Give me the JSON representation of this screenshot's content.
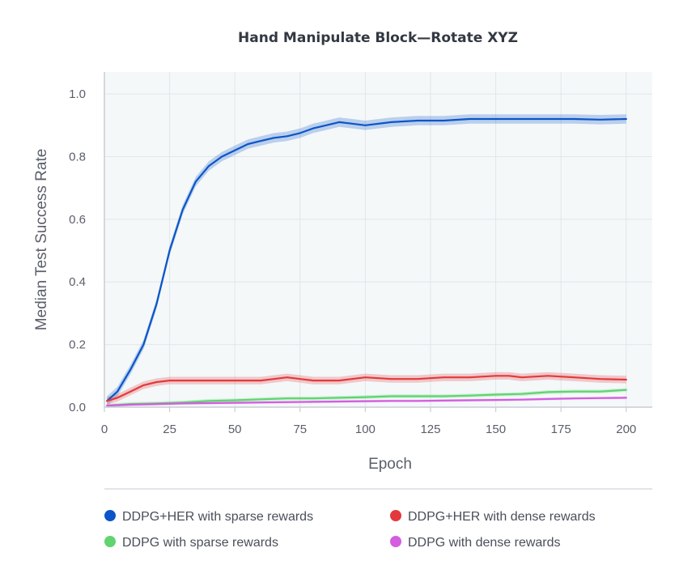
{
  "chart_data": {
    "type": "line",
    "title": "Hand Manipulate Block—Rotate XYZ",
    "xlabel": "Epoch",
    "ylabel": "Median Test Success Rate",
    "xlim": [
      0,
      210
    ],
    "ylim": [
      0,
      1.07
    ],
    "xticks": [
      0,
      25,
      50,
      75,
      100,
      125,
      150,
      175,
      200
    ],
    "yticks": [
      "0.0",
      "0.2",
      "0.4",
      "0.6",
      "0.8",
      "1.0"
    ],
    "grid": true,
    "legend_position": "bottom",
    "series": [
      {
        "name": "DDPG+HER with sparse rewards",
        "color": "#0b55c8",
        "x": [
          1,
          5,
          10,
          15,
          20,
          25,
          30,
          35,
          40,
          45,
          50,
          55,
          60,
          65,
          70,
          75,
          80,
          85,
          90,
          95,
          100,
          110,
          120,
          125,
          130,
          140,
          150,
          160,
          170,
          180,
          190,
          200
        ],
        "values": [
          0.02,
          0.05,
          0.12,
          0.2,
          0.33,
          0.5,
          0.63,
          0.72,
          0.77,
          0.8,
          0.82,
          0.84,
          0.85,
          0.86,
          0.865,
          0.875,
          0.89,
          0.9,
          0.91,
          0.905,
          0.9,
          0.91,
          0.915,
          0.915,
          0.915,
          0.92,
          0.92,
          0.92,
          0.92,
          0.92,
          0.918,
          0.92
        ],
        "band": 0.015
      },
      {
        "name": "DDPG+HER with dense rewards",
        "color": "#e3393c",
        "x": [
          1,
          5,
          10,
          15,
          20,
          25,
          30,
          40,
          50,
          60,
          65,
          70,
          75,
          80,
          90,
          100,
          110,
          120,
          130,
          140,
          150,
          155,
          160,
          170,
          180,
          190,
          200
        ],
        "values": [
          0.02,
          0.03,
          0.05,
          0.07,
          0.08,
          0.085,
          0.085,
          0.085,
          0.085,
          0.085,
          0.09,
          0.095,
          0.09,
          0.085,
          0.085,
          0.095,
          0.09,
          0.09,
          0.095,
          0.095,
          0.1,
          0.1,
          0.095,
          0.1,
          0.095,
          0.09,
          0.088
        ],
        "band": 0.012
      },
      {
        "name": "DDPG with sparse rewards",
        "color": "#5fd46f",
        "x": [
          1,
          10,
          20,
          30,
          40,
          50,
          60,
          70,
          80,
          90,
          100,
          110,
          120,
          130,
          140,
          150,
          160,
          170,
          180,
          190,
          200
        ],
        "values": [
          0.005,
          0.01,
          0.012,
          0.015,
          0.02,
          0.022,
          0.025,
          0.028,
          0.028,
          0.03,
          0.032,
          0.035,
          0.035,
          0.035,
          0.037,
          0.04,
          0.042,
          0.048,
          0.05,
          0.05,
          0.055
        ],
        "band": 0.006
      },
      {
        "name": "DDPG with dense rewards",
        "color": "#d45de0",
        "x": [
          1,
          10,
          20,
          30,
          40,
          50,
          60,
          70,
          80,
          90,
          100,
          110,
          120,
          130,
          140,
          150,
          160,
          170,
          180,
          190,
          200
        ],
        "values": [
          0.005,
          0.008,
          0.01,
          0.012,
          0.013,
          0.014,
          0.015,
          0.016,
          0.017,
          0.018,
          0.019,
          0.02,
          0.02,
          0.021,
          0.022,
          0.023,
          0.024,
          0.026,
          0.028,
          0.029,
          0.03
        ],
        "band": 0.004
      }
    ]
  }
}
